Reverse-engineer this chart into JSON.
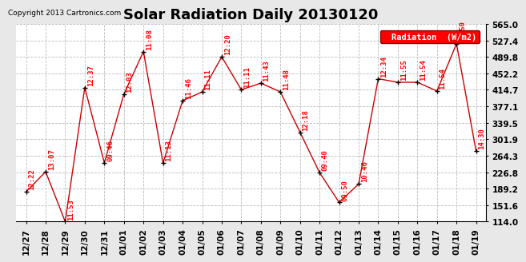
{
  "title": "Solar Radiation Daily 20130120",
  "copyright": "Copyright 2013 Cartronics.com",
  "legend_label": "Radiation  (W/m2)",
  "background_color": "#e8e8e8",
  "plot_bg_color": "#ffffff",
  "line_color": "#cc0000",
  "marker_color": "#000000",
  "grid_color": "#bbbbbb",
  "ylim": [
    114.0,
    565.0
  ],
  "yticks": [
    114.0,
    151.6,
    189.2,
    226.8,
    264.3,
    301.9,
    339.5,
    377.1,
    414.7,
    452.2,
    489.8,
    527.4,
    565.0
  ],
  "dates": [
    "12/27",
    "12/28",
    "12/29",
    "12/30",
    "12/31",
    "01/01",
    "01/02",
    "01/03",
    "01/04",
    "01/05",
    "01/06",
    "01/07",
    "01/08",
    "01/09",
    "01/10",
    "01/11",
    "01/12",
    "01/13",
    "01/14",
    "01/15",
    "01/16",
    "01/17",
    "01/18",
    "01/19"
  ],
  "values": [
    182,
    228,
    114,
    420,
    248,
    405,
    502,
    248,
    390,
    410,
    490,
    415,
    430,
    410,
    318,
    226,
    158,
    200,
    440,
    432,
    432,
    412,
    520,
    275
  ],
  "labels": [
    "12:22",
    "13:07",
    "11:53",
    "12:37",
    "09:46",
    "12:03",
    "11:08",
    "11:13",
    "11:46",
    "11:11",
    "12:20",
    "11:11",
    "11:43",
    "11:48",
    "12:18",
    "09:40",
    "09:50",
    "10:46",
    "12:34",
    "11:55",
    "11:54",
    "11:54",
    "13:50",
    "14:30"
  ],
  "title_fontsize": 13,
  "label_fontsize": 7,
  "tick_fontsize": 7.5,
  "annotation_fontsize": 6.5
}
